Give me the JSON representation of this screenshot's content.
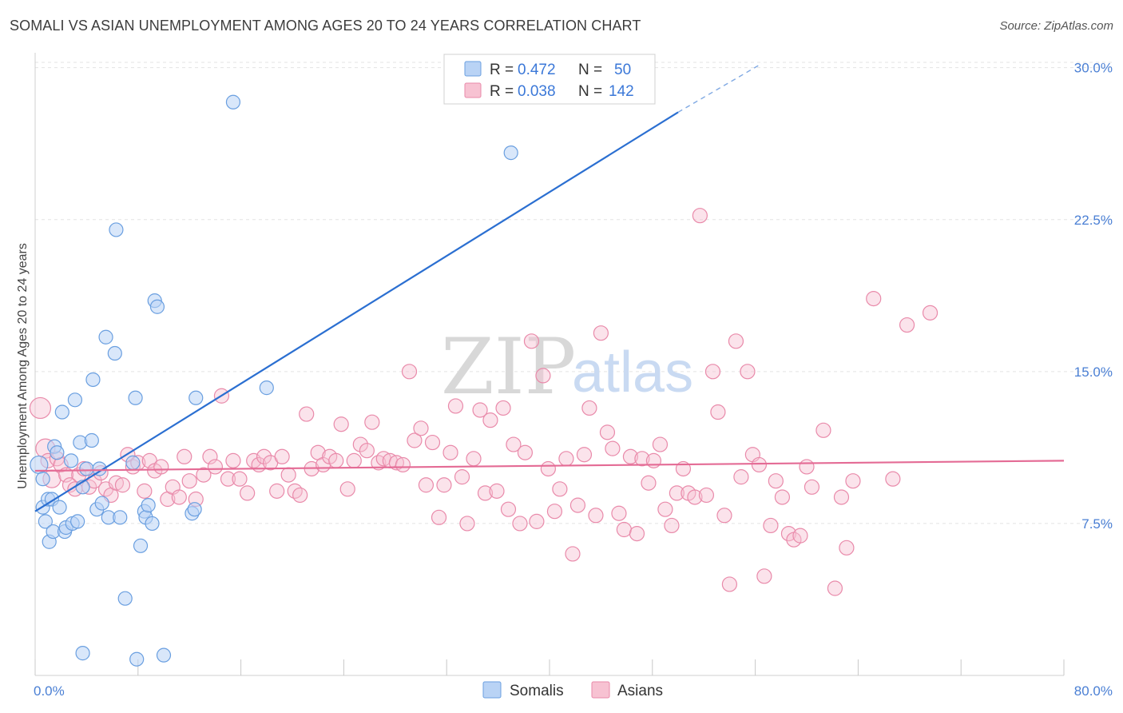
{
  "title": "SOMALI VS ASIAN UNEMPLOYMENT AMONG AGES 20 TO 24 YEARS CORRELATION CHART",
  "source": "Source: ZipAtlas.com",
  "watermark": {
    "zip": "ZIP",
    "atlas": "atlas"
  },
  "colors": {
    "somali_fill": "#b9d3f5",
    "somali_stroke": "#6a9fe0",
    "somali_line": "#2b6fd1",
    "asian_fill": "#f7c2d2",
    "asian_stroke": "#e98aaa",
    "asian_line": "#e46b95",
    "tick": "#4a7fd4",
    "grid": "#e3e3e3"
  },
  "legend": {
    "row1": {
      "r_label": "R =",
      "r_value": "0.472",
      "n_label": "N =",
      "n_value": "50"
    },
    "row2": {
      "r_label": "R =",
      "r_value": "0.038",
      "n_label": "N =",
      "n_value": "142"
    }
  },
  "bottom_legend": [
    "Somalis",
    "Asians"
  ],
  "chart_data": {
    "type": "scatter",
    "title": "SOMALI VS ASIAN UNEMPLOYMENT AMONG AGES 20 TO 24 YEARS CORRELATION CHART",
    "xlabel": "",
    "ylabel": "Unemployment Among Ages 20 to 24 years",
    "xlim": [
      0,
      80
    ],
    "ylim": [
      0,
      30.5
    ],
    "x_tick_labels": [
      "0.0%",
      "80.0%"
    ],
    "y_ticks": [
      7.5,
      15.0,
      22.5,
      30.0
    ],
    "y_tick_labels": [
      "7.5%",
      "15.0%",
      "22.5%",
      "30.0%"
    ],
    "grid": "horizontal dashed",
    "legend_position": "top-center",
    "series": [
      {
        "name": "Somalis",
        "R": 0.472,
        "N": 50,
        "trend": {
          "x0": 0,
          "y0": 8.1,
          "x1": 50,
          "y1": 27.8,
          "dash_to_x": 56.5,
          "dash_to_y": 30.2
        },
        "points": [
          [
            0.3,
            10.4
          ],
          [
            0.6,
            9.7
          ],
          [
            0.6,
            8.3
          ],
          [
            0.8,
            7.6
          ],
          [
            1.0,
            8.7
          ],
          [
            1.1,
            6.6
          ],
          [
            1.3,
            8.7
          ],
          [
            1.4,
            7.1
          ],
          [
            1.5,
            11.3
          ],
          [
            1.7,
            11.0
          ],
          [
            1.9,
            8.3
          ],
          [
            2.1,
            13.0
          ],
          [
            2.3,
            7.1
          ],
          [
            2.4,
            7.3
          ],
          [
            2.8,
            10.6
          ],
          [
            2.9,
            7.5
          ],
          [
            3.1,
            13.6
          ],
          [
            3.3,
            7.6
          ],
          [
            3.5,
            11.5
          ],
          [
            3.7,
            9.3
          ],
          [
            4.0,
            10.2
          ],
          [
            4.4,
            11.6
          ],
          [
            4.5,
            14.6
          ],
          [
            4.8,
            8.2
          ],
          [
            5.0,
            10.2
          ],
          [
            5.2,
            8.5
          ],
          [
            5.5,
            16.7
          ],
          [
            5.7,
            7.8
          ],
          [
            6.2,
            15.9
          ],
          [
            6.3,
            22.0
          ],
          [
            6.6,
            7.8
          ],
          [
            7.0,
            3.8
          ],
          [
            7.6,
            10.5
          ],
          [
            7.8,
            13.7
          ],
          [
            8.2,
            6.4
          ],
          [
            8.5,
            8.1
          ],
          [
            8.6,
            7.8
          ],
          [
            8.8,
            8.4
          ],
          [
            9.1,
            7.5
          ],
          [
            9.3,
            18.5
          ],
          [
            9.5,
            18.2
          ],
          [
            10.0,
            1.0
          ],
          [
            12.2,
            8.0
          ],
          [
            12.4,
            8.2
          ],
          [
            12.5,
            13.7
          ],
          [
            15.4,
            28.3
          ],
          [
            18.0,
            14.2
          ],
          [
            37.0,
            25.8
          ],
          [
            3.7,
            1.1
          ],
          [
            7.9,
            0.8
          ]
        ]
      },
      {
        "name": "Asians",
        "R": 0.038,
        "N": 142,
        "trend": {
          "x0": 0,
          "y0": 10.1,
          "x1": 80,
          "y1": 10.6
        },
        "points": [
          [
            0.4,
            13.2
          ],
          [
            0.8,
            11.2
          ],
          [
            1.0,
            10.6
          ],
          [
            1.3,
            9.7
          ],
          [
            1.7,
            10.7
          ],
          [
            2.0,
            10.4
          ],
          [
            2.4,
            9.9
          ],
          [
            2.7,
            9.4
          ],
          [
            3.1,
            9.2
          ],
          [
            3.4,
            9.9
          ],
          [
            3.8,
            10.2
          ],
          [
            4.2,
            9.3
          ],
          [
            4.6,
            9.6
          ],
          [
            5.1,
            10.0
          ],
          [
            5.5,
            9.2
          ],
          [
            5.9,
            8.9
          ],
          [
            6.3,
            9.5
          ],
          [
            6.8,
            9.4
          ],
          [
            7.2,
            10.9
          ],
          [
            7.6,
            10.3
          ],
          [
            8.0,
            10.5
          ],
          [
            8.5,
            9.1
          ],
          [
            8.9,
            10.6
          ],
          [
            9.3,
            10.1
          ],
          [
            9.8,
            10.3
          ],
          [
            10.3,
            8.7
          ],
          [
            10.7,
            9.3
          ],
          [
            11.2,
            8.8
          ],
          [
            11.6,
            10.8
          ],
          [
            12.0,
            9.6
          ],
          [
            12.5,
            8.7
          ],
          [
            13.1,
            9.9
          ],
          [
            13.6,
            10.8
          ],
          [
            14.0,
            10.3
          ],
          [
            14.5,
            13.8
          ],
          [
            15.0,
            9.7
          ],
          [
            15.4,
            10.6
          ],
          [
            15.9,
            9.7
          ],
          [
            16.5,
            9.0
          ],
          [
            17.0,
            10.6
          ],
          [
            17.4,
            10.4
          ],
          [
            17.8,
            10.8
          ],
          [
            18.3,
            10.5
          ],
          [
            18.8,
            9.1
          ],
          [
            19.2,
            10.8
          ],
          [
            19.7,
            9.9
          ],
          [
            20.2,
            9.1
          ],
          [
            20.6,
            8.9
          ],
          [
            21.1,
            12.9
          ],
          [
            21.5,
            10.2
          ],
          [
            22.0,
            11.0
          ],
          [
            22.4,
            10.4
          ],
          [
            22.9,
            10.8
          ],
          [
            23.4,
            10.6
          ],
          [
            23.8,
            12.4
          ],
          [
            24.3,
            9.2
          ],
          [
            24.8,
            10.6
          ],
          [
            25.3,
            11.4
          ],
          [
            25.8,
            11.1
          ],
          [
            26.2,
            12.5
          ],
          [
            26.7,
            10.5
          ],
          [
            27.1,
            10.7
          ],
          [
            27.6,
            10.6
          ],
          [
            28.1,
            10.5
          ],
          [
            28.6,
            10.4
          ],
          [
            29.1,
            15.0
          ],
          [
            29.5,
            11.6
          ],
          [
            30.0,
            12.2
          ],
          [
            30.4,
            9.4
          ],
          [
            30.9,
            11.5
          ],
          [
            31.4,
            7.8
          ],
          [
            31.8,
            9.4
          ],
          [
            32.3,
            11.0
          ],
          [
            32.7,
            13.3
          ],
          [
            33.2,
            9.8
          ],
          [
            33.6,
            7.5
          ],
          [
            34.1,
            10.7
          ],
          [
            34.6,
            13.1
          ],
          [
            35.0,
            9.0
          ],
          [
            35.4,
            12.6
          ],
          [
            35.9,
            9.1
          ],
          [
            36.4,
            13.2
          ],
          [
            36.8,
            8.2
          ],
          [
            37.2,
            11.4
          ],
          [
            37.7,
            7.5
          ],
          [
            38.1,
            11.0
          ],
          [
            38.6,
            16.5
          ],
          [
            39.0,
            7.6
          ],
          [
            39.5,
            14.8
          ],
          [
            39.9,
            10.2
          ],
          [
            40.4,
            8.1
          ],
          [
            40.8,
            9.2
          ],
          [
            41.3,
            10.7
          ],
          [
            41.8,
            6.0
          ],
          [
            42.2,
            8.4
          ],
          [
            42.7,
            10.9
          ],
          [
            43.1,
            13.2
          ],
          [
            43.6,
            7.9
          ],
          [
            44.0,
            16.9
          ],
          [
            44.5,
            12.0
          ],
          [
            44.9,
            11.2
          ],
          [
            45.4,
            8.0
          ],
          [
            45.8,
            7.2
          ],
          [
            46.3,
            10.8
          ],
          [
            46.8,
            7.0
          ],
          [
            47.2,
            10.7
          ],
          [
            47.7,
            9.5
          ],
          [
            48.1,
            10.6
          ],
          [
            48.6,
            11.4
          ],
          [
            49.0,
            8.2
          ],
          [
            49.5,
            7.4
          ],
          [
            49.9,
            9.0
          ],
          [
            50.4,
            10.2
          ],
          [
            50.8,
            9.0
          ],
          [
            51.3,
            8.8
          ],
          [
            51.7,
            22.7
          ],
          [
            52.2,
            8.9
          ],
          [
            52.7,
            15.0
          ],
          [
            53.1,
            13.0
          ],
          [
            53.6,
            7.9
          ],
          [
            54.0,
            4.5
          ],
          [
            54.5,
            16.5
          ],
          [
            54.9,
            9.8
          ],
          [
            55.4,
            15.0
          ],
          [
            55.8,
            10.9
          ],
          [
            56.3,
            10.4
          ],
          [
            56.7,
            4.9
          ],
          [
            57.2,
            7.4
          ],
          [
            57.6,
            9.6
          ],
          [
            58.1,
            8.8
          ],
          [
            58.6,
            7.0
          ],
          [
            59.0,
            6.7
          ],
          [
            59.5,
            6.9
          ],
          [
            60.0,
            10.3
          ],
          [
            60.4,
            9.3
          ],
          [
            61.3,
            12.1
          ],
          [
            62.2,
            4.3
          ],
          [
            62.7,
            8.8
          ],
          [
            63.1,
            6.3
          ],
          [
            63.6,
            9.6
          ],
          [
            65.2,
            18.6
          ],
          [
            66.7,
            9.7
          ],
          [
            67.8,
            17.3
          ],
          [
            69.6,
            17.9
          ]
        ]
      }
    ]
  }
}
